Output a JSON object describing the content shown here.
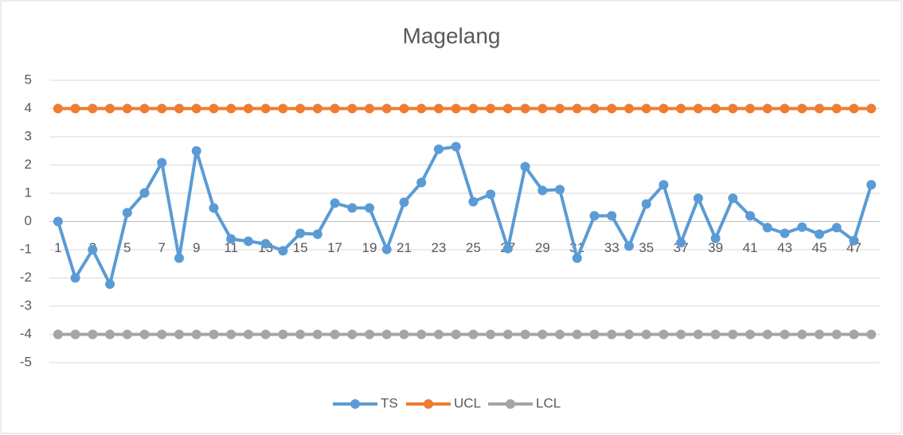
{
  "chart_data": {
    "type": "line",
    "title": "Magelang",
    "categories": [
      1,
      null,
      3,
      null,
      5,
      null,
      7,
      null,
      9,
      null,
      11,
      null,
      13,
      null,
      15,
      null,
      17,
      null,
      19,
      null,
      21,
      null,
      23,
      null,
      25,
      null,
      27,
      null,
      29,
      null,
      31,
      null,
      33,
      null,
      35,
      null,
      37,
      null,
      39,
      null,
      41,
      null,
      43,
      null,
      45,
      null,
      47,
      null
    ],
    "series": [
      {
        "name": "TS",
        "color": "#5b9bd5",
        "values": [
          0,
          -2,
          -1,
          -2.22,
          0.31,
          1.01,
          2.08,
          -1.3,
          2.5,
          0.48,
          -0.62,
          -0.7,
          -0.79,
          -1.04,
          -0.42,
          -0.45,
          0.65,
          0.48,
          0.48,
          -0.99,
          0.68,
          1.38,
          2.56,
          2.65,
          0.7,
          0.96,
          -0.96,
          1.94,
          1.1,
          1.13,
          -1.3,
          0.2,
          0.2,
          -0.87,
          0.62,
          1.3,
          -0.75,
          0.82,
          -0.6,
          0.82,
          0.2,
          -0.22,
          -0.42,
          -0.2,
          -0.45,
          -0.22,
          -0.68,
          1.3
        ]
      },
      {
        "name": "UCL",
        "color": "#ed7d31",
        "values": [
          4,
          4,
          4,
          4,
          4,
          4,
          4,
          4,
          4,
          4,
          4,
          4,
          4,
          4,
          4,
          4,
          4,
          4,
          4,
          4,
          4,
          4,
          4,
          4,
          4,
          4,
          4,
          4,
          4,
          4,
          4,
          4,
          4,
          4,
          4,
          4,
          4,
          4,
          4,
          4,
          4,
          4,
          4,
          4,
          4,
          4,
          4,
          4
        ]
      },
      {
        "name": "LCL",
        "color": "#a5a5a5",
        "values": [
          -4,
          -4,
          -4,
          -4,
          -4,
          -4,
          -4,
          -4,
          -4,
          -4,
          -4,
          -4,
          -4,
          -4,
          -4,
          -4,
          -4,
          -4,
          -4,
          -4,
          -4,
          -4,
          -4,
          -4,
          -4,
          -4,
          -4,
          -4,
          -4,
          -4,
          -4,
          -4,
          -4,
          -4,
          -4,
          -4,
          -4,
          -4,
          -4,
          -4,
          -4,
          -4,
          -4,
          -4,
          -4,
          -4,
          -4,
          -4
        ]
      }
    ],
    "ylim": [
      -5,
      5
    ],
    "yticks": [
      -5,
      -4,
      -3,
      -2,
      -1,
      0,
      1,
      2,
      3,
      4,
      5
    ],
    "grid": true,
    "legend": "bottom"
  }
}
